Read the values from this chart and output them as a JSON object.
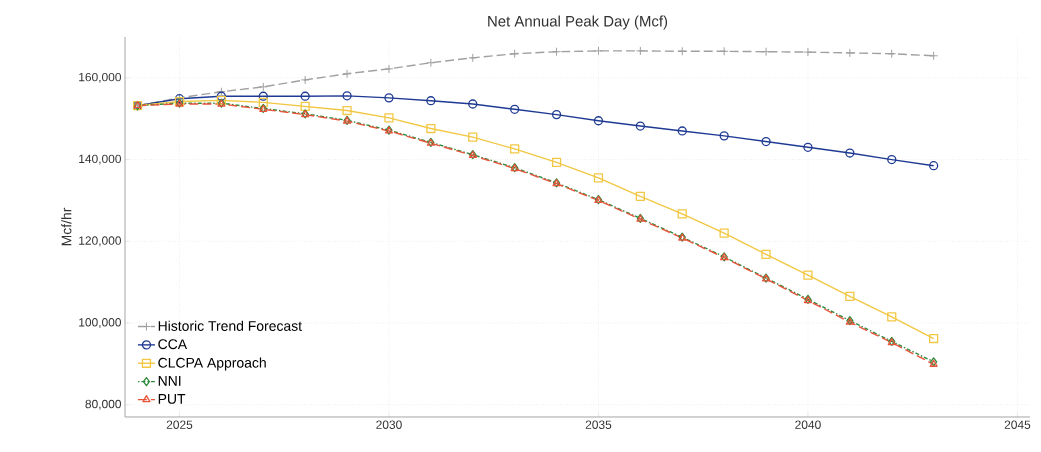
{
  "chart_data": {
    "type": "line",
    "title": "Net Annual Peak Day (Mcf)",
    "ylabel": "Mcf/hr",
    "x": [
      2024,
      2025,
      2026,
      2027,
      2028,
      2029,
      2030,
      2031,
      2032,
      2033,
      2034,
      2035,
      2036,
      2037,
      2038,
      2039,
      2040,
      2041,
      2042,
      2043
    ],
    "series": [
      {
        "name": "Historic Trend Forecast",
        "color": "#a0a0a0",
        "marker": "cross",
        "line_style": "dashed",
        "values": [
          153200,
          155100,
          156600,
          157800,
          159500,
          161000,
          162200,
          163700,
          164900,
          165900,
          166400,
          166600,
          166600,
          166500,
          166500,
          166400,
          166300,
          166100,
          165900,
          165400
        ]
      },
      {
        "name": "CCA",
        "color": "#1f3a93",
        "marker": "circle",
        "line_style": "solid",
        "values": [
          153200,
          154900,
          155500,
          155500,
          155500,
          155600,
          155100,
          154400,
          153600,
          152300,
          151000,
          149500,
          148200,
          147000,
          145800,
          144400,
          143000,
          141600,
          140000,
          138500
        ]
      },
      {
        "name": "CLCPA Approach",
        "color": "#f2c744",
        "marker": "square",
        "line_style": "solid",
        "values": [
          153200,
          154200,
          154500,
          154000,
          153000,
          152000,
          150200,
          147600,
          145500,
          142600,
          139300,
          135500,
          131000,
          126700,
          122000,
          116800,
          111700,
          106500,
          101500,
          96200
        ]
      },
      {
        "name": "NNI",
        "color": "#2e8b3e",
        "marker": "diamond",
        "line_style": "dotted",
        "values": [
          153200,
          153800,
          153800,
          152500,
          151200,
          149600,
          147200,
          144200,
          141200,
          138000,
          134300,
          130200,
          125600,
          121000,
          116200,
          111000,
          105800,
          100600,
          95500,
          90500
        ]
      },
      {
        "name": "PUT",
        "color": "#e8533a",
        "marker": "triangle",
        "line_style": "dashed",
        "values": [
          153200,
          153600,
          153600,
          152300,
          151000,
          149400,
          147000,
          144000,
          141000,
          137800,
          134100,
          130000,
          125400,
          120800,
          116000,
          110800,
          105500,
          100200,
          95200,
          89900
        ]
      }
    ],
    "xlim": [
      2023.7,
      2045.3
    ],
    "ylim": [
      77000,
      170000
    ],
    "xticks": [
      2025,
      2030,
      2035,
      2040,
      2045
    ],
    "yticks": [
      {
        "value": 80000,
        "label": "80,000"
      },
      {
        "value": 100000,
        "label": "100,000"
      },
      {
        "value": 120000,
        "label": "120,000"
      },
      {
        "value": 140000,
        "label": "140,000"
      },
      {
        "value": 160000,
        "label": "160,000"
      }
    ],
    "grid": true,
    "legend": "bottom left"
  }
}
